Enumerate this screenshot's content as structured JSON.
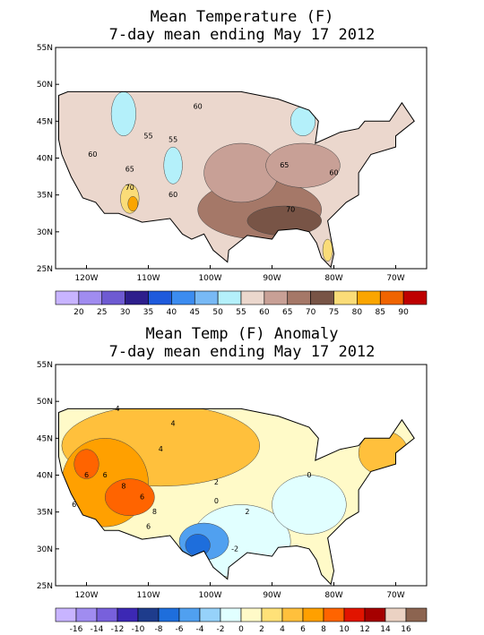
{
  "maps": [
    {
      "title": [
        "Mean Temperature (F)",
        "7-day mean ending May 17 2012"
      ],
      "lat_labels": [
        "55N",
        "50N",
        "45N",
        "40N",
        "35N",
        "30N",
        "25N"
      ],
      "lon_labels": [
        "120W",
        "110W",
        "100W",
        "90W",
        "80W",
        "70W"
      ],
      "colorbar": {
        "colors": [
          "#c8b4ff",
          "#a08cf0",
          "#6e5ad2",
          "#2d1e8c",
          "#1e5adc",
          "#3c8cf0",
          "#78b9f5",
          "#b4f0fa",
          "#ebd7cd",
          "#c8a096",
          "#a57868",
          "#785446",
          "#fadc78",
          "#faa500",
          "#f06400",
          "#be0000"
        ],
        "labels": [
          "20",
          "25",
          "30",
          "35",
          "40",
          "45",
          "50",
          "55",
          "60",
          "65",
          "70",
          "75",
          "80",
          "85",
          "90"
        ]
      },
      "contour_labels": [
        "60",
        "60",
        "55",
        "55",
        "65",
        "70",
        "60",
        "65",
        "60",
        "70"
      ]
    },
    {
      "title": [
        "Mean Temp (F) Anomaly",
        "7-day mean ending May 17 2012"
      ],
      "lat_labels": [
        "55N",
        "50N",
        "45N",
        "40N",
        "35N",
        "30N",
        "25N"
      ],
      "lon_labels": [
        "120W",
        "110W",
        "100W",
        "90W",
        "80W",
        "70W"
      ],
      "colorbar": {
        "colors": [
          "#c8b4ff",
          "#a08cf0",
          "#7860dc",
          "#3c28b4",
          "#1e3c8c",
          "#1e6edc",
          "#50a0f0",
          "#96d2fa",
          "#e1ffff",
          "#fffac8",
          "#ffe178",
          "#ffc03c",
          "#ffa000",
          "#ff6400",
          "#e11400",
          "#a50000",
          "#ebd2c3",
          "#8c6450"
        ],
        "labels": [
          "-16",
          "-14",
          "-12",
          "-10",
          "-8",
          "-6",
          "-4",
          "-2",
          "0",
          "2",
          "4",
          "6",
          "8",
          "10",
          "12",
          "14",
          "16"
        ]
      },
      "contour_labels": [
        "4",
        "4",
        "4",
        "6",
        "6",
        "8",
        "6",
        "8",
        "6",
        "2",
        "0",
        "0",
        "-2",
        "2",
        "6"
      ]
    }
  ]
}
